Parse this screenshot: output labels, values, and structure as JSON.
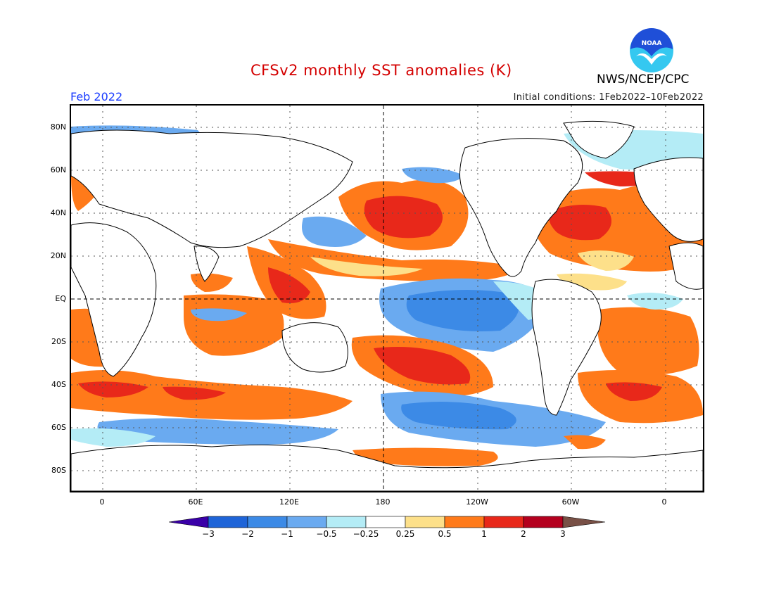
{
  "header": {
    "title": "CFSv2 monthly SST anomalies (K)",
    "org": "NWS/NCEP/CPC",
    "month": "Feb 2022",
    "initial_conditions": "Initial conditions: 1Feb2022–10Feb2022",
    "logo_text": "NOAA"
  },
  "axes": {
    "lat_labels": [
      "80N",
      "60N",
      "40N",
      "20N",
      "EQ",
      "20S",
      "40S",
      "60S",
      "80S"
    ],
    "lon_labels": [
      "0",
      "60E",
      "120E",
      "180",
      "120W",
      "60W",
      "0"
    ]
  },
  "colorbar": {
    "labels": [
      "−3",
      "−2",
      "−1",
      "−0.5",
      "−0.25",
      "0.25",
      "0.5",
      "1",
      "2",
      "3"
    ],
    "colors": [
      "#3a00a8",
      "#1e64d8",
      "#3c8ae6",
      "#6aaaf0",
      "#b4ecf6",
      "#ffffff",
      "#fde08a",
      "#ff7a1a",
      "#e8281a",
      "#b4001e",
      "#785046"
    ]
  },
  "colors": {
    "title": "#d40000",
    "month": "#1a3cff",
    "logo_blue": "#1f4fd8",
    "logo_cyan": "#35c8f0"
  }
}
